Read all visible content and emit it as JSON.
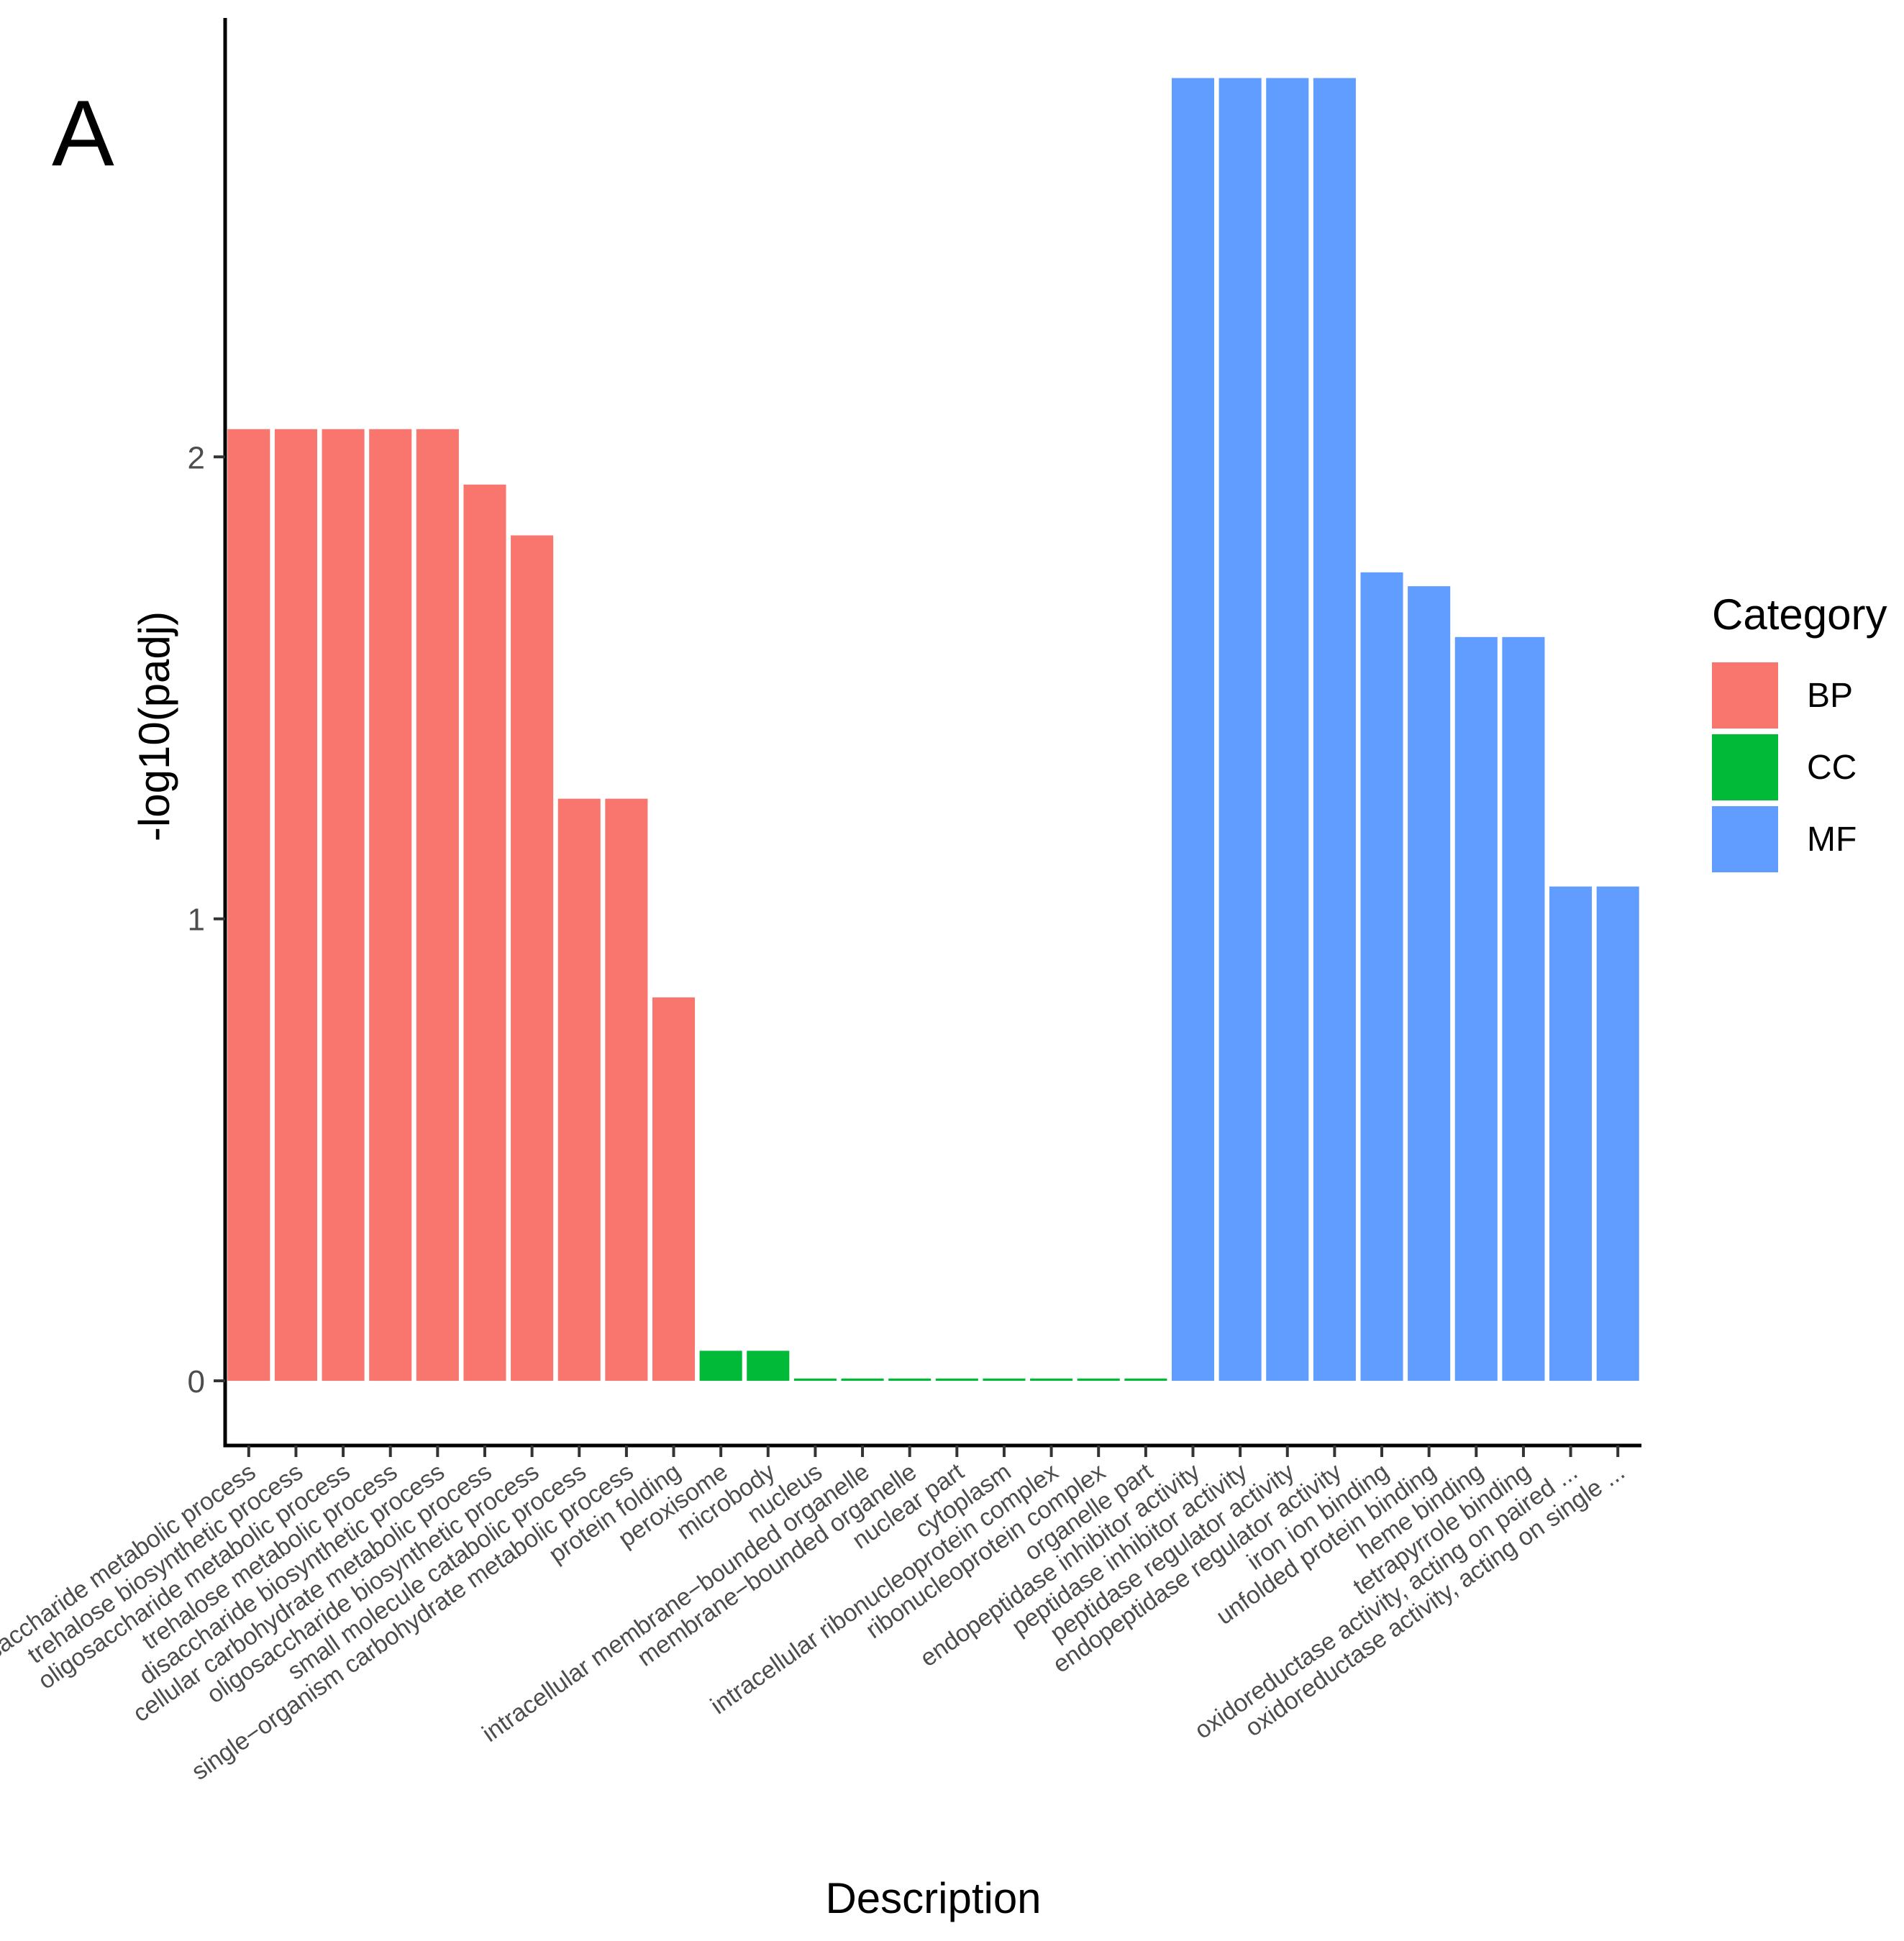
{
  "panel_label": "A",
  "chart_data": {
    "type": "bar",
    "title": "",
    "xlabel": "Description",
    "ylabel": "-log10(padj)",
    "ylim": [
      -0.14,
      2.95
    ],
    "yticks": [
      0,
      1,
      2
    ],
    "categories": [
      "disaccharide metabolic process",
      "trehalose biosynthetic process",
      "oligosaccharide metabolic process",
      "trehalose metabolic process",
      "disaccharide biosynthetic process",
      "cellular carbohydrate metabolic process",
      "oligosaccharide biosynthetic process",
      "small molecule catabolic process",
      "single−organism carbohydrate metabolic process",
      "protein folding",
      "peroxisome",
      "microbody",
      "nucleus",
      "intracellular membrane−bounded organelle",
      "membrane−bounded organelle",
      "nuclear part",
      "cytoplasm",
      "intracellular ribonucleoprotein complex",
      "ribonucleoprotein complex",
      "organelle part",
      "endopeptidase inhibitor activity",
      "peptidase inhibitor activity",
      "peptidase regulator activity",
      "endopeptidase regulator activity",
      "iron ion binding",
      "unfolded protein binding",
      "heme binding",
      "tetrapyrrole binding",
      "oxidoreductase activity, acting on paired ...",
      "oxidoreductase activity, acting on single ..."
    ],
    "values": [
      2.06,
      2.06,
      2.06,
      2.06,
      2.06,
      1.94,
      1.83,
      1.26,
      1.26,
      0.83,
      0.065,
      0.065,
      0.005,
      0.005,
      0.005,
      0.005,
      0.005,
      0.005,
      0.005,
      0.005,
      2.82,
      2.82,
      2.82,
      2.82,
      1.75,
      1.72,
      1.61,
      1.61,
      1.07,
      1.07
    ],
    "groups": [
      "BP",
      "BP",
      "BP",
      "BP",
      "BP",
      "BP",
      "BP",
      "BP",
      "BP",
      "BP",
      "CC",
      "CC",
      "CC",
      "CC",
      "CC",
      "CC",
      "CC",
      "CC",
      "CC",
      "CC",
      "MF",
      "MF",
      "MF",
      "MF",
      "MF",
      "MF",
      "MF",
      "MF",
      "MF",
      "MF"
    ],
    "legend": {
      "title": "Category",
      "placement": "right",
      "items": [
        {
          "label": "BP",
          "color": "#F8766D"
        },
        {
          "label": "CC",
          "color": "#00BA38"
        },
        {
          "label": "MF",
          "color": "#619CFF"
        }
      ]
    }
  }
}
